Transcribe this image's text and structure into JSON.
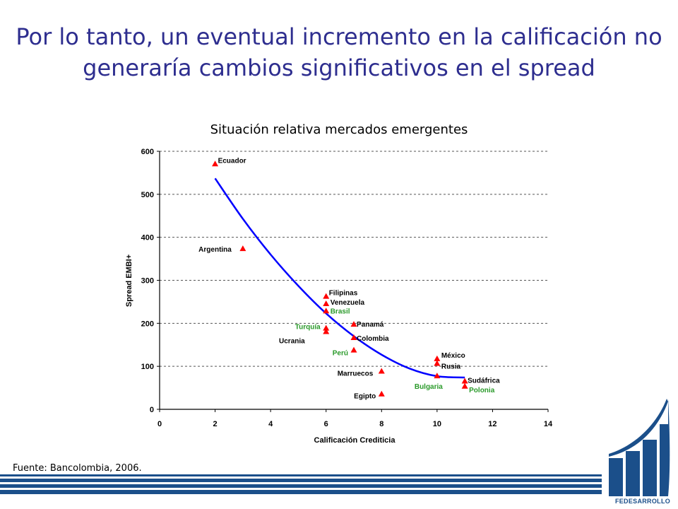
{
  "slide": {
    "headline_line1": "Por lo tanto, un eventual incremento en la calificación no",
    "headline_line2": "generaría cambios significativos en el spread",
    "source": "Fuente: Bancolombia, 2006.",
    "logo_text": "FEDESARROLLO"
  },
  "chart_data": {
    "type": "scatter",
    "title": "Situación relativa mercados emergentes",
    "xlabel": "Calificación Crediticia",
    "ylabel": "Spread EMBI+",
    "xlim": [
      0,
      14
    ],
    "ylim": [
      0,
      600
    ],
    "xticks": [
      0,
      2,
      4,
      6,
      8,
      10,
      12,
      14
    ],
    "yticks": [
      0,
      100,
      200,
      300,
      400,
      500,
      600
    ],
    "grid": "horizontal dashed",
    "colors": {
      "marker": "#ff0000",
      "trend": "#0000ff",
      "label_black": "#000000",
      "label_green": "#2a9a2a"
    },
    "points": [
      {
        "name": "Ecuador",
        "x": 2,
        "y": 570,
        "label_color": "black"
      },
      {
        "name": "Argentina",
        "x": 3,
        "y": 373,
        "label_color": "black"
      },
      {
        "name": "Filipinas",
        "x": 6,
        "y": 262,
        "label_color": "black"
      },
      {
        "name": "Venezuela",
        "x": 6,
        "y": 245,
        "label_color": "black"
      },
      {
        "name": "Brasil",
        "x": 6,
        "y": 228,
        "label_color": "green"
      },
      {
        "name": "Turquía",
        "x": 6,
        "y": 188,
        "label_color": "green"
      },
      {
        "name": "Ucrania",
        "x": 6,
        "y": 180,
        "label_color": "black"
      },
      {
        "name": "Panamá",
        "x": 7,
        "y": 197,
        "label_color": "black"
      },
      {
        "name": "Colombia",
        "x": 7,
        "y": 166,
        "label_color": "black"
      },
      {
        "name": "Perú",
        "x": 7,
        "y": 137,
        "label_color": "green"
      },
      {
        "name": "Marruecos",
        "x": 8,
        "y": 88,
        "label_color": "black"
      },
      {
        "name": "Egipto",
        "x": 8,
        "y": 35,
        "label_color": "black"
      },
      {
        "name": "México",
        "x": 10,
        "y": 117,
        "label_color": "black"
      },
      {
        "name": "Rusia",
        "x": 10,
        "y": 106,
        "label_color": "black"
      },
      {
        "name": "Bulgaria",
        "x": 10,
        "y": 77,
        "label_color": "green"
      },
      {
        "name": "Sudáfrica",
        "x": 11,
        "y": 65,
        "label_color": "black"
      },
      {
        "name": "Polonia",
        "x": 11,
        "y": 53,
        "label_color": "green"
      }
    ],
    "trend": {
      "type": "polynomial",
      "x": [
        2,
        3,
        4,
        5,
        6,
        7,
        8,
        9,
        10,
        11
      ],
      "y": [
        537,
        443,
        360,
        287,
        223,
        170,
        127,
        95,
        77,
        74
      ]
    }
  }
}
